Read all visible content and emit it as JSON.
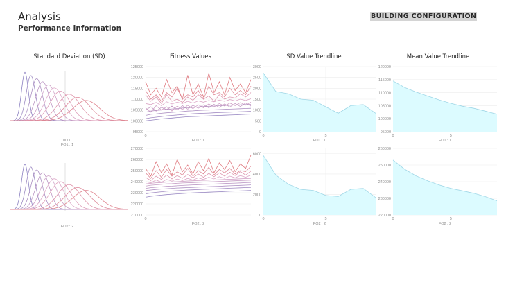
{
  "header": {
    "title": "Analysis",
    "subtitle": "Performance Information",
    "config_button": "BUILDING CONFIGURATION"
  },
  "columns": [
    {
      "title": "Standard Deviation (SD)"
    },
    {
      "title": "Fitness Values"
    },
    {
      "title": "SD Value Trendline"
    },
    {
      "title": "Mean Value Trendline"
    }
  ],
  "colors": {
    "area_fill": "#dcfbff",
    "area_stroke": "#9fd6e6",
    "curve_purple": "#8a7fc0",
    "curve_pink": "#dca6c6",
    "curve_red": "#e07a80",
    "grid": "#ececec",
    "axis_text": "#8c8c8c"
  },
  "chart_data": [
    {
      "panel": "sd-1",
      "type": "line",
      "title": "",
      "xlabel": "FO1 : 1",
      "tick_labels": [
        "110000"
      ],
      "series_count": 10
    },
    {
      "panel": "fitness-1",
      "type": "line",
      "xlabel": "FO1 : 1",
      "x_ticks": [
        "0"
      ],
      "y_ticks": [
        95000,
        100000,
        105000,
        110000,
        115000,
        120000,
        125000
      ],
      "ylim": [
        95000,
        125000
      ],
      "series": [
        {
          "values": [
            118000,
            112000,
            115000,
            111000,
            119000,
            113000,
            116000,
            110000,
            121000,
            112000,
            117000,
            111000,
            122000,
            113000,
            118000,
            112000,
            120000,
            114000,
            117000,
            113000,
            119000
          ]
        },
        {
          "values": [
            114000,
            110000,
            112000,
            109000,
            113000,
            111000,
            115000,
            110000,
            112000,
            111000,
            114000,
            110000,
            116000,
            112000,
            113000,
            111000,
            115000,
            112000,
            114000,
            112000,
            116000
          ]
        },
        {
          "values": [
            112000,
            109000,
            111000,
            108000,
            112000,
            109000,
            110000,
            108500,
            111000,
            109500,
            112000,
            110000,
            111500,
            109000,
            112000,
            110000,
            111000,
            110500,
            112500,
            111000,
            113000
          ]
        },
        {
          "values": [
            108000,
            107500,
            108500,
            107000,
            108800,
            107800,
            108600,
            108000,
            109000,
            108200,
            109200,
            108600,
            109400,
            108800,
            109600,
            109000,
            109800,
            109200,
            110000,
            109400,
            110200
          ]
        },
        {
          "values": [
            106000,
            104000,
            107000,
            105000,
            106500,
            104500,
            106800,
            105200,
            107200,
            105600,
            107400,
            106000,
            107800,
            106400,
            108000,
            106800,
            108200,
            107000,
            108400,
            107200,
            108600
          ]
        },
        {
          "values": [
            105000,
            106500,
            104500,
            106200,
            105200,
            106800,
            105000,
            107000,
            105400,
            107200,
            105800,
            107400,
            106000,
            107600,
            106200,
            107800,
            106400,
            108000,
            106600,
            108200,
            106800
          ]
        },
        {
          "values": [
            104000,
            104500,
            104800,
            105000,
            105300,
            105500,
            105700,
            105900,
            106000,
            106200,
            106400,
            106600,
            106700,
            106800,
            107000,
            107100,
            107200,
            107300,
            107400,
            107500,
            107600
          ]
        },
        {
          "values": [
            102500,
            103000,
            103200,
            103500,
            103700,
            103900,
            104100,
            104300,
            104500,
            104600,
            104800,
            104900,
            105000,
            105100,
            105200,
            105300,
            105400,
            105500,
            105600,
            105700,
            105800
          ]
        },
        {
          "values": [
            101000,
            101400,
            101700,
            102000,
            102300,
            102500,
            102700,
            102900,
            103100,
            103300,
            103400,
            103500,
            103600,
            103700,
            103800,
            103900,
            104000,
            104100,
            104200,
            104300,
            104400
          ]
        },
        {
          "values": [
            100000,
            100300,
            100600,
            100900,
            101100,
            101300,
            101500,
            101700,
            101900,
            102000,
            102100,
            102200,
            102300,
            102400,
            102500,
            102600,
            102700,
            102800,
            102900,
            103000,
            103100
          ]
        }
      ]
    },
    {
      "panel": "sd-trend-1",
      "type": "area",
      "xlabel": "FO1 : 1",
      "x_ticks": [
        "0",
        "5"
      ],
      "x": [
        0,
        1,
        2,
        3,
        4,
        5,
        6,
        7,
        8,
        9
      ],
      "y_ticks": [
        0,
        500,
        1000,
        1500,
        2000,
        2500,
        3000
      ],
      "ylim": [
        0,
        3000
      ],
      "values": [
        2700,
        1850,
        1750,
        1500,
        1450,
        1150,
        850,
        1200,
        1250,
        850
      ]
    },
    {
      "panel": "mean-trend-1",
      "type": "area",
      "xlabel": "FO1 : 1",
      "x_ticks": [
        "0",
        "5"
      ],
      "x": [
        0,
        1,
        2,
        3,
        4,
        5,
        6,
        7,
        8,
        9
      ],
      "y_ticks": [
        95000,
        100000,
        105000,
        110000,
        115000,
        120000
      ],
      "ylim": [
        95000,
        120000
      ],
      "values": [
        114500,
        112000,
        110200,
        108700,
        107200,
        105900,
        104800,
        104000,
        102900,
        101700
      ]
    },
    {
      "panel": "sd-2",
      "type": "line",
      "xlabel": "FO2 : 2",
      "series_count": 10
    },
    {
      "panel": "fitness-2",
      "type": "line",
      "xlabel": "FO2 : 2",
      "x_ticks": [
        "0"
      ],
      "y_ticks": [
        210000,
        220000,
        230000,
        240000,
        250000,
        260000,
        270000
      ],
      "ylim": [
        210000,
        270000
      ],
      "series": [
        {
          "values": [
            252000,
            245000,
            258000,
            248000,
            256000,
            246000,
            260000,
            249000,
            255000,
            247000,
            258000,
            250000,
            261000,
            248000,
            257000,
            251000,
            259000,
            249000,
            256000,
            252000,
            264000
          ]
        },
        {
          "values": [
            248000,
            243000,
            250000,
            244000,
            251000,
            245000,
            249000,
            246000,
            252000,
            245000,
            250000,
            247000,
            253000,
            246000,
            251000,
            248000,
            252000,
            247000,
            250000,
            249000,
            254000
          ]
        },
        {
          "values": [
            244000,
            241000,
            245000,
            242000,
            246000,
            242500,
            245500,
            243000,
            246500,
            243500,
            247000,
            244000,
            247500,
            244500,
            248000,
            245000,
            248500,
            245500,
            249000,
            246000,
            249500
          ]
        },
        {
          "values": [
            240000,
            239000,
            241500,
            239500,
            242000,
            240500,
            242500,
            241000,
            243000,
            241500,
            243500,
            242000,
            244000,
            242500,
            244500,
            243000,
            245000,
            243500,
            245500,
            244000,
            246000
          ]
        },
        {
          "values": [
            238000,
            238500,
            239000,
            239200,
            239600,
            239800,
            240000,
            240300,
            240600,
            240800,
            241000,
            241200,
            241400,
            241600,
            241800,
            242000,
            242200,
            242400,
            242600,
            242800,
            243000
          ]
        },
        {
          "values": [
            236000,
            236800,
            237200,
            237600,
            238000,
            238200,
            238500,
            238800,
            239000,
            239200,
            239400,
            239600,
            239800,
            240000,
            240200,
            240400,
            240600,
            240800,
            241000,
            241200,
            241400
          ]
        },
        {
          "values": [
            234000,
            234600,
            235000,
            235400,
            235800,
            236000,
            236300,
            236600,
            236900,
            237100,
            237300,
            237500,
            237700,
            237900,
            238100,
            238300,
            238500,
            238700,
            238900,
            239100,
            239300
          ]
        },
        {
          "values": [
            232000,
            232500,
            233000,
            233400,
            233700,
            234000,
            234300,
            234500,
            234700,
            234900,
            235100,
            235300,
            235500,
            235700,
            235900,
            236100,
            236300,
            236500,
            236700,
            236900,
            237100
          ]
        },
        {
          "values": [
            229000,
            229800,
            230400,
            230900,
            231300,
            231600,
            231900,
            232200,
            232500,
            232700,
            232900,
            233100,
            233300,
            233500,
            233700,
            233900,
            234100,
            234300,
            234500,
            234700,
            234900
          ]
        },
        {
          "values": [
            226000,
            226800,
            227400,
            227900,
            228300,
            228700,
            229000,
            229300,
            229600,
            229900,
            230100,
            230300,
            230500,
            230700,
            230900,
            231100,
            231300,
            231500,
            231700,
            231900,
            232100
          ]
        }
      ]
    },
    {
      "panel": "sd-trend-2",
      "type": "area",
      "xlabel": "FO2 : 2",
      "x_ticks": [
        "0",
        "5"
      ],
      "x": [
        0,
        1,
        2,
        3,
        4,
        5,
        6,
        7,
        8,
        9
      ],
      "y_ticks": [
        0,
        2000,
        4000,
        6000
      ],
      "ylim": [
        0,
        6500
      ],
      "values": [
        5800,
        3900,
        3000,
        2500,
        2400,
        1900,
        1800,
        2500,
        2600,
        1700
      ]
    },
    {
      "panel": "mean-trend-2",
      "type": "area",
      "xlabel": "FO2 : 2",
      "x_ticks": [
        "0",
        "5"
      ],
      "x": [
        0,
        1,
        2,
        3,
        4,
        5,
        6,
        7,
        8,
        9
      ],
      "y_ticks": [
        220000,
        230000,
        240000,
        250000,
        260000
      ],
      "ylim": [
        220000,
        260000
      ],
      "values": [
        253000,
        247500,
        243500,
        240500,
        238000,
        236000,
        234500,
        233000,
        231000,
        228500
      ]
    }
  ]
}
